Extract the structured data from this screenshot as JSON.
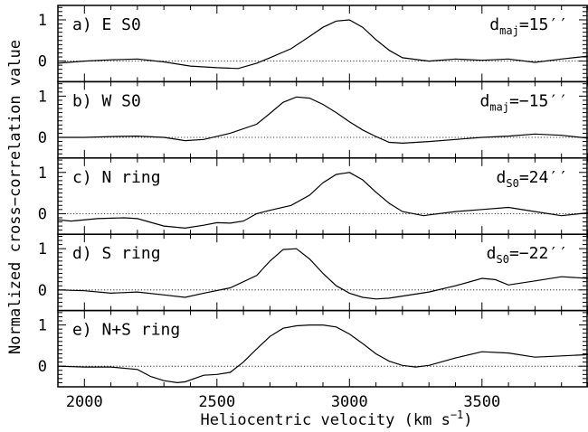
{
  "chart_data": {
    "type": "line",
    "xlabel": "Heliocentric velocity (km s",
    "xlabel_sup": "−1",
    "xlabel_tail": ")",
    "ylabel": "Normalized cross−correlation value",
    "xlim": [
      1900,
      3900
    ],
    "ylim": [
      -0.5,
      1.35
    ],
    "x_ticks": [
      2000,
      2500,
      3000,
      3500
    ],
    "y_ticks": [
      0,
      1
    ],
    "grid": false,
    "reference_line": 0,
    "panels": [
      {
        "label": "a) E S0",
        "dist": {
          "main": "d",
          "sub": "maj",
          "value": "=15′′"
        },
        "x": [
          1900,
          2000,
          2100,
          2200,
          2300,
          2400,
          2500,
          2580,
          2650,
          2700,
          2780,
          2850,
          2900,
          2950,
          3000,
          3050,
          3100,
          3150,
          3200,
          3300,
          3400,
          3500,
          3600,
          3700,
          3800,
          3900
        ],
        "values": [
          -0.05,
          0.0,
          0.03,
          0.05,
          -0.02,
          -0.12,
          -0.16,
          -0.18,
          -0.05,
          0.08,
          0.3,
          0.6,
          0.82,
          0.97,
          1.0,
          0.82,
          0.52,
          0.26,
          0.08,
          0.0,
          0.05,
          0.02,
          0.05,
          -0.03,
          0.05,
          0.12
        ]
      },
      {
        "label": "b) W S0",
        "dist": {
          "main": "d",
          "sub": "maj",
          "value": "=−15′′"
        },
        "x": [
          1900,
          2000,
          2100,
          2200,
          2300,
          2380,
          2450,
          2550,
          2650,
          2700,
          2750,
          2800,
          2850,
          2900,
          2950,
          3000,
          3050,
          3100,
          3150,
          3200,
          3300,
          3400,
          3500,
          3600,
          3700,
          3800,
          3900
        ],
        "values": [
          0.0,
          0.0,
          0.02,
          0.03,
          0.0,
          -0.08,
          -0.05,
          0.1,
          0.32,
          0.58,
          0.85,
          0.98,
          0.95,
          0.8,
          0.6,
          0.38,
          0.18,
          0.02,
          -0.12,
          -0.14,
          -0.1,
          -0.05,
          0.0,
          0.03,
          0.08,
          0.05,
          -0.02
        ]
      },
      {
        "label": "c) N ring",
        "dist": {
          "main": "d",
          "sub": "S0",
          "value": "=24′′"
        },
        "x": [
          1900,
          1950,
          2050,
          2150,
          2200,
          2300,
          2380,
          2450,
          2500,
          2550,
          2600,
          2650,
          2700,
          2780,
          2850,
          2900,
          2950,
          3000,
          3050,
          3100,
          3150,
          3200,
          3280,
          3300,
          3400,
          3500,
          3600,
          3700,
          3800,
          3900
        ],
        "values": [
          -0.15,
          -0.18,
          -0.12,
          -0.1,
          -0.12,
          -0.3,
          -0.35,
          -0.28,
          -0.22,
          -0.23,
          -0.18,
          0.0,
          0.08,
          0.2,
          0.45,
          0.75,
          0.95,
          1.0,
          0.82,
          0.52,
          0.25,
          0.05,
          -0.05,
          -0.03,
          0.05,
          0.1,
          0.15,
          0.05,
          -0.05,
          0.02
        ]
      },
      {
        "label": "d) S ring",
        "dist": {
          "main": "d",
          "sub": "S0",
          "value": "=−22′′"
        },
        "x": [
          1900,
          2000,
          2100,
          2200,
          2300,
          2380,
          2450,
          2550,
          2650,
          2700,
          2750,
          2800,
          2850,
          2900,
          2950,
          3000,
          3050,
          3100,
          3150,
          3200,
          3300,
          3400,
          3500,
          3550,
          3600,
          3700,
          3800,
          3900
        ],
        "values": [
          0.0,
          -0.02,
          -0.08,
          -0.05,
          -0.12,
          -0.18,
          -0.08,
          0.05,
          0.35,
          0.7,
          0.98,
          1.0,
          0.75,
          0.4,
          0.1,
          -0.08,
          -0.18,
          -0.22,
          -0.2,
          -0.15,
          -0.05,
          0.1,
          0.28,
          0.25,
          0.12,
          0.22,
          0.32,
          0.28
        ]
      },
      {
        "label": "e) N+S ring",
        "dist": null,
        "x": [
          1900,
          2000,
          2100,
          2200,
          2250,
          2300,
          2350,
          2380,
          2450,
          2500,
          2550,
          2600,
          2650,
          2700,
          2750,
          2800,
          2850,
          2900,
          2950,
          3000,
          3050,
          3100,
          3150,
          3200,
          3250,
          3300,
          3400,
          3500,
          3600,
          3700,
          3800,
          3900
        ],
        "values": [
          0.0,
          -0.02,
          -0.02,
          -0.08,
          -0.25,
          -0.35,
          -0.4,
          -0.38,
          -0.22,
          -0.2,
          -0.15,
          0.1,
          0.42,
          0.72,
          0.92,
          0.98,
          1.0,
          1.0,
          0.95,
          0.78,
          0.55,
          0.3,
          0.12,
          0.02,
          -0.02,
          0.02,
          0.2,
          0.35,
          0.32,
          0.22,
          0.25,
          0.28
        ]
      }
    ]
  }
}
